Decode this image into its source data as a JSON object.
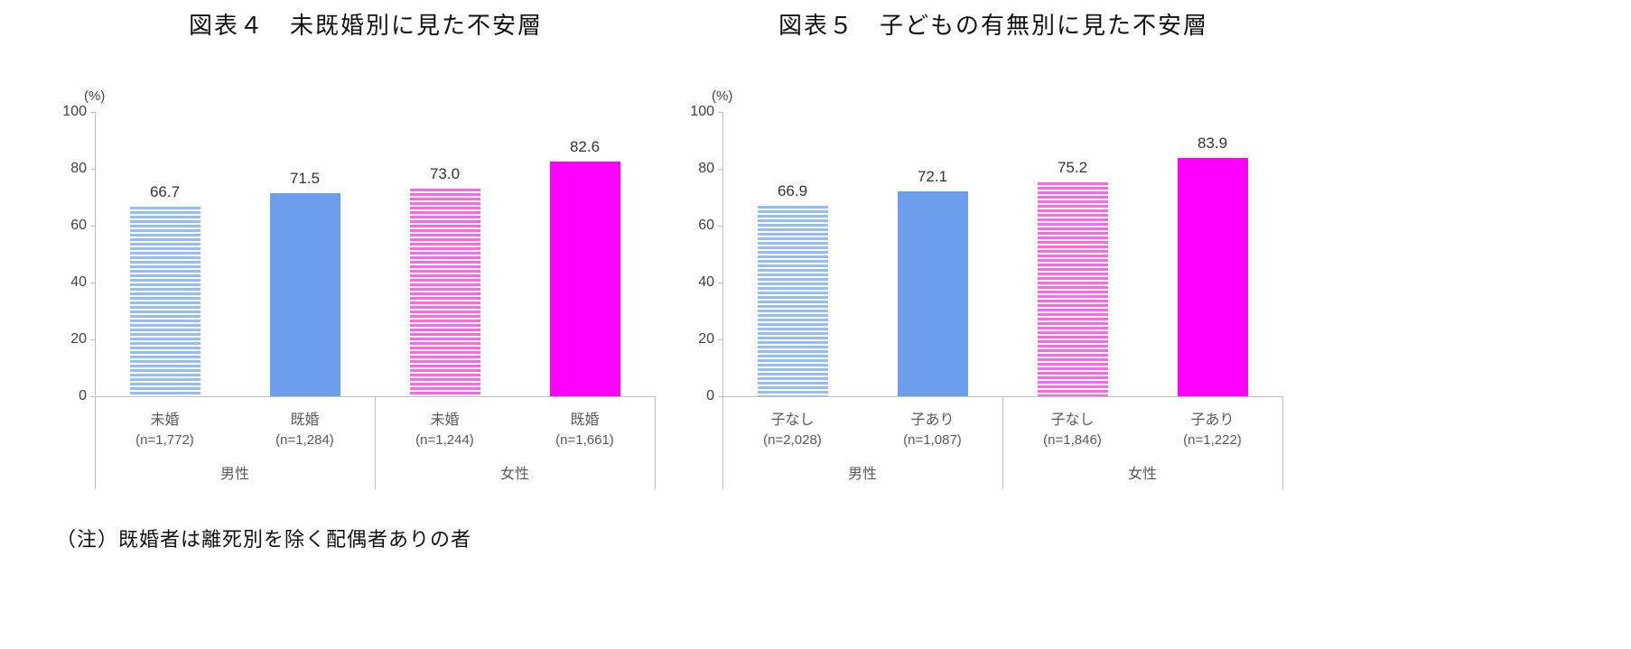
{
  "note": "（注）既婚者は離死別を除く配偶者ありの者",
  "chart_data": [
    {
      "type": "bar",
      "title": "図表４　未既婚別に見た不安層",
      "ylabel": "(%)",
      "xlabel": "",
      "ylim": [
        0,
        100
      ],
      "yticks": [
        0,
        20,
        40,
        60,
        80,
        100
      ],
      "grid": false,
      "legend": "none",
      "categories": [
        "未婚",
        "既婚",
        "未婚",
        "既婚"
      ],
      "n_labels": [
        "(n=1,772)",
        "(n=1,284)",
        "(n=1,244)",
        "(n=1,661)"
      ],
      "values": [
        66.7,
        71.5,
        73.0,
        82.6
      ],
      "value_labels": [
        "66.7",
        "71.5",
        "73.0",
        "82.6"
      ],
      "bar_styles": [
        "blue-striped",
        "blue-solid",
        "pink-striped",
        "pink-solid"
      ],
      "groups": [
        {
          "label": "男性",
          "span": 2
        },
        {
          "label": "女性",
          "span": 2
        }
      ]
    },
    {
      "type": "bar",
      "title": "図表５　子どもの有無別に見た不安層",
      "ylabel": "(%)",
      "xlabel": "",
      "ylim": [
        0,
        100
      ],
      "yticks": [
        0,
        20,
        40,
        60,
        80,
        100
      ],
      "grid": false,
      "legend": "none",
      "categories": [
        "子なし",
        "子あり",
        "子なし",
        "子あり"
      ],
      "n_labels": [
        "(n=2,028)",
        "(n=1,087)",
        "(n=1,846)",
        "(n=1,222)"
      ],
      "values": [
        66.9,
        72.1,
        75.2,
        83.9
      ],
      "value_labels": [
        "66.9",
        "72.1",
        "75.2",
        "83.9"
      ],
      "bar_styles": [
        "blue-striped",
        "blue-solid",
        "pink-striped",
        "pink-solid"
      ],
      "groups": [
        {
          "label": "男性",
          "span": 2
        },
        {
          "label": "女性",
          "span": 2
        }
      ]
    }
  ],
  "colors": {
    "blue_solid": "#6d9eeb",
    "blue_stripe": "#94bdf2",
    "pink_solid": "#ff00ff",
    "pink_stripe": "#ff66e8",
    "axis_line": "#bfbfbf",
    "tick_text": "#404040",
    "label_text": "#595959"
  }
}
